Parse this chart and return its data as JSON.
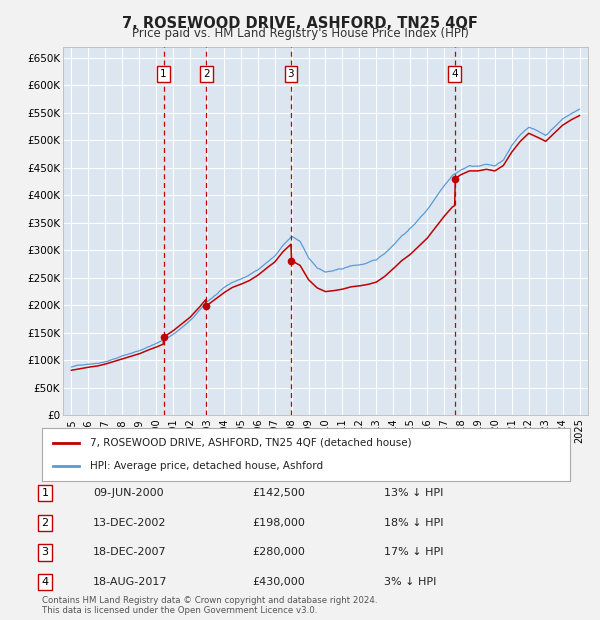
{
  "title": "7, ROSEWOOD DRIVE, ASHFORD, TN25 4QF",
  "subtitle": "Price paid vs. HM Land Registry's House Price Index (HPI)",
  "legend_line1": "7, ROSEWOOD DRIVE, ASHFORD, TN25 4QF (detached house)",
  "legend_line2": "HPI: Average price, detached house, Ashford",
  "transactions": [
    {
      "num": 1,
      "date": "09-JUN-2000",
      "price": 142500,
      "pct": "13% ↓ HPI",
      "year": 2000.44
    },
    {
      "num": 2,
      "date": "13-DEC-2002",
      "price": 198000,
      "pct": "18% ↓ HPI",
      "year": 2002.95
    },
    {
      "num": 3,
      "date": "18-DEC-2007",
      "price": 280000,
      "pct": "17% ↓ HPI",
      "year": 2007.96
    },
    {
      "num": 4,
      "date": "18-AUG-2017",
      "price": 430000,
      "pct": "3% ↓ HPI",
      "year": 2017.63
    }
  ],
  "ylim": [
    0,
    670000
  ],
  "xlim": [
    1994.5,
    2025.5
  ],
  "yticks": [
    0,
    50000,
    100000,
    150000,
    200000,
    250000,
    300000,
    350000,
    400000,
    450000,
    500000,
    550000,
    600000,
    650000
  ],
  "ytick_labels": [
    "£0",
    "£50K",
    "£100K",
    "£150K",
    "£200K",
    "£250K",
    "£300K",
    "£350K",
    "£400K",
    "£450K",
    "£500K",
    "£550K",
    "£600K",
    "£650K"
  ],
  "xticks": [
    1995,
    1996,
    1997,
    1998,
    1999,
    2000,
    2001,
    2002,
    2003,
    2004,
    2005,
    2006,
    2007,
    2008,
    2009,
    2010,
    2011,
    2012,
    2013,
    2014,
    2015,
    2016,
    2017,
    2018,
    2019,
    2020,
    2021,
    2022,
    2023,
    2024,
    2025
  ],
  "hpi_color": "#5b9bd5",
  "price_color": "#c00000",
  "fig_bg": "#f2f2f2",
  "plot_bg": "#dce6f1",
  "grid_color": "#ffffff",
  "footnote": "Contains HM Land Registry data © Crown copyright and database right 2024.\nThis data is licensed under the Open Government Licence v3.0.",
  "hpi_anchors_years": [
    1995,
    1995.5,
    1996,
    1996.5,
    1997,
    1997.5,
    1998,
    1998.5,
    1999,
    1999.5,
    2000,
    2000.5,
    2001,
    2001.5,
    2002,
    2002.5,
    2003,
    2003.5,
    2004,
    2004.5,
    2005,
    2005.5,
    2006,
    2006.5,
    2007,
    2007.5,
    2008,
    2008.5,
    2009,
    2009.5,
    2010,
    2010.5,
    2011,
    2011.5,
    2012,
    2012.5,
    2013,
    2013.5,
    2014,
    2014.5,
    2015,
    2015.5,
    2016,
    2016.5,
    2017,
    2017.5,
    2018,
    2018.5,
    2019,
    2019.5,
    2020,
    2020.5,
    2021,
    2021.5,
    2022,
    2022.5,
    2023,
    2023.5,
    2024,
    2024.5,
    2025
  ],
  "hpi_anchors_values": [
    88000,
    91000,
    94000,
    96000,
    100000,
    105000,
    110000,
    115000,
    120000,
    127000,
    133000,
    140000,
    150000,
    162000,
    174000,
    190000,
    208000,
    220000,
    232000,
    242000,
    248000,
    255000,
    265000,
    278000,
    290000,
    310000,
    325000,
    315000,
    285000,
    268000,
    260000,
    262000,
    265000,
    270000,
    272000,
    275000,
    280000,
    292000,
    308000,
    325000,
    338000,
    355000,
    372000,
    395000,
    418000,
    438000,
    448000,
    455000,
    455000,
    458000,
    455000,
    465000,
    490000,
    510000,
    525000,
    518000,
    510000,
    525000,
    540000,
    550000,
    558000
  ],
  "red_base_year": 1995,
  "red_base_value": 82000
}
